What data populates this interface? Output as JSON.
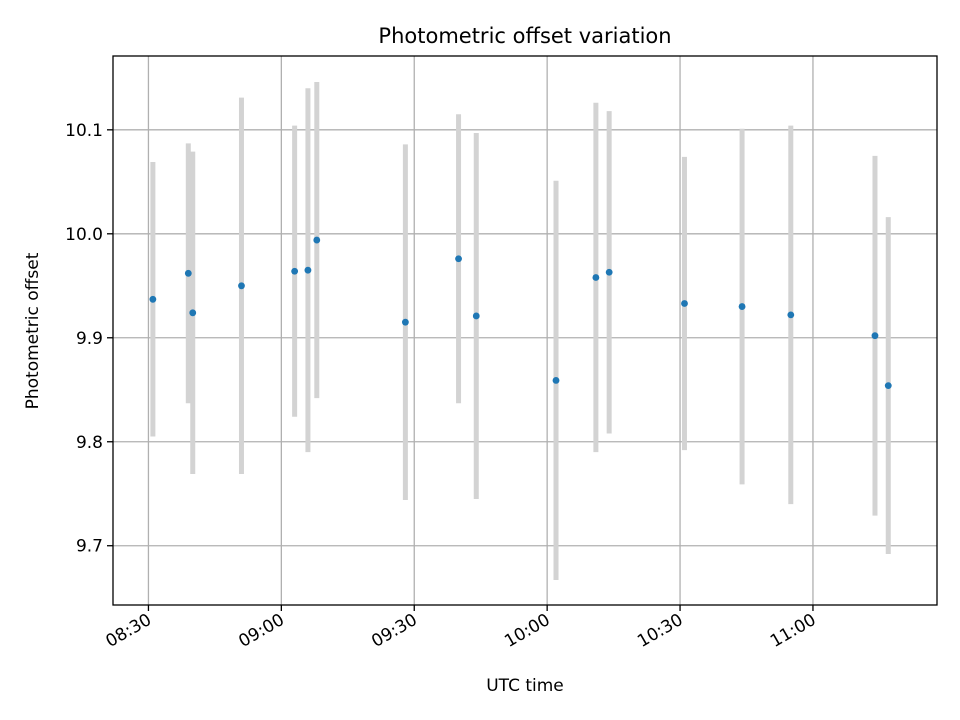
{
  "chart_data": {
    "type": "scatter",
    "title": "Photometric offset variation",
    "xlabel": "UTC time",
    "ylabel": "Photometric offset",
    "grid": true,
    "xlim": [
      "08:22",
      "11:28"
    ],
    "ylim": [
      9.643,
      10.171
    ],
    "x_ticks": [
      "08:30",
      "09:00",
      "09:30",
      "10:00",
      "10:30",
      "11:00"
    ],
    "y_ticks": [
      "9.7",
      "9.8",
      "9.9",
      "10.0",
      "10.1"
    ],
    "marker_color": "#1f77b4",
    "errorbar_color": "#d3d3d3",
    "points": [
      {
        "time": "08:31",
        "y": 9.937,
        "err": 0.132
      },
      {
        "time": "08:39",
        "y": 9.962,
        "err": 0.125
      },
      {
        "time": "08:40",
        "y": 9.924,
        "err": 0.155
      },
      {
        "time": "08:51",
        "y": 9.95,
        "err": 0.181
      },
      {
        "time": "09:03",
        "y": 9.964,
        "err": 0.14
      },
      {
        "time": "09:06",
        "y": 9.965,
        "err": 0.175
      },
      {
        "time": "09:08",
        "y": 9.994,
        "err": 0.152
      },
      {
        "time": "09:28",
        "y": 9.915,
        "err": 0.171
      },
      {
        "time": "09:40",
        "y": 9.976,
        "err": 0.139
      },
      {
        "time": "09:44",
        "y": 9.921,
        "err": 0.176
      },
      {
        "time": "10:02",
        "y": 9.859,
        "err": 0.192
      },
      {
        "time": "10:11",
        "y": 9.958,
        "err": 0.168
      },
      {
        "time": "10:14",
        "y": 9.963,
        "err": 0.155
      },
      {
        "time": "10:31",
        "y": 9.933,
        "err": 0.141
      },
      {
        "time": "10:44",
        "y": 9.93,
        "err": 0.171
      },
      {
        "time": "10:55",
        "y": 9.922,
        "err": 0.182
      },
      {
        "time": "11:14",
        "y": 9.902,
        "err": 0.173
      },
      {
        "time": "11:17",
        "y": 9.854,
        "err": 0.162
      }
    ]
  }
}
